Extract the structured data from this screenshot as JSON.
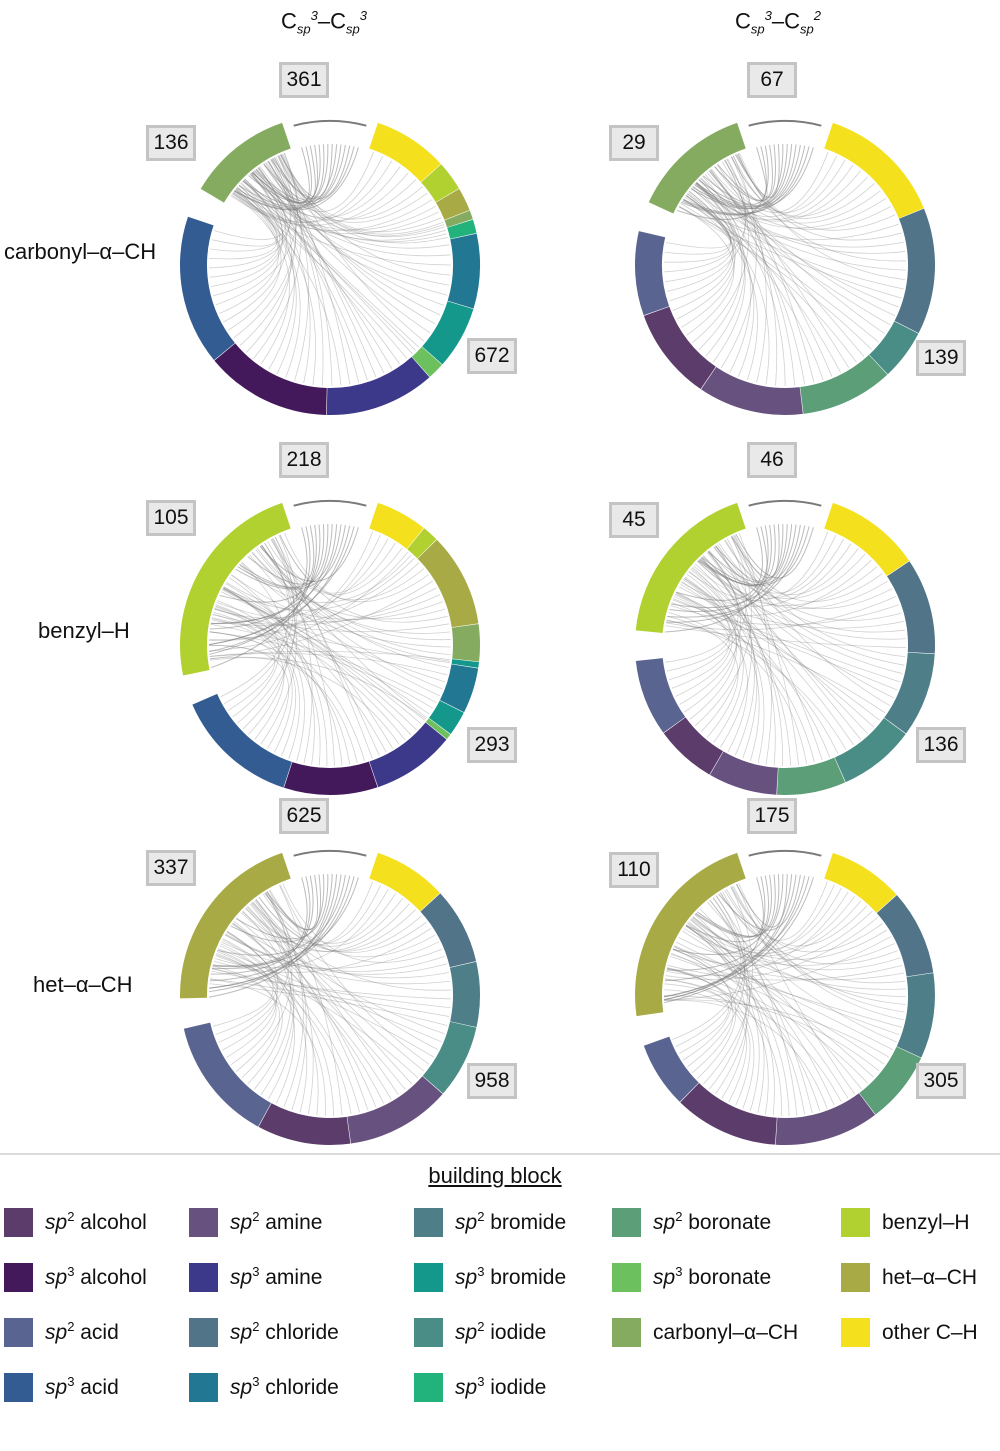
{
  "column_titles": [
    {
      "base1": "C",
      "sub1": "sp",
      "sup1": "3",
      "dash": "–",
      "base2": "C",
      "sub2": "sp",
      "sup2": "3"
    },
    {
      "base1": "C",
      "sub1": "sp",
      "sup1": "3",
      "dash": "–",
      "base2": "C",
      "sub2": "sp",
      "sup2": "2"
    }
  ],
  "row_labels": [
    "carbonyl–α–CH",
    "benzyl–H",
    "het–α–CH"
  ],
  "panels": [
    {
      "row": "carbonyl–α–CH",
      "column": "Csp3–Csp3",
      "counts": {
        "self": "361",
        "source": "136",
        "partner": "672"
      },
      "segments": [
        {
          "block": "carbonyl–α–CH",
          "size": 136
        },
        {
          "block": "other C–H",
          "size": 95
        },
        {
          "block": "benzyl–H",
          "size": 38
        },
        {
          "block": "het–α–CH",
          "size": 30
        },
        {
          "block": "carbonyl–α–CH",
          "size": 12
        },
        {
          "block": "sp3 iodide",
          "size": 18
        },
        {
          "block": "sp3 chloride",
          "size": 95
        },
        {
          "block": "sp3 bromide",
          "size": 80
        },
        {
          "block": "sp3 boronate",
          "size": 22
        },
        {
          "block": "sp3 amine",
          "size": 140
        },
        {
          "block": "sp3 alcohol",
          "size": 160
        },
        {
          "block": "sp3 acid",
          "size": 190
        }
      ]
    },
    {
      "row": "carbonyl–α–CH",
      "column": "Csp3–Csp2",
      "counts": {
        "self": "67",
        "source": "29",
        "partner": "139"
      },
      "segments": [
        {
          "block": "carbonyl–α–CH",
          "size": 29
        },
        {
          "block": "other C–H",
          "size": 30
        },
        {
          "block": "sp2 chloride",
          "size": 30
        },
        {
          "block": "sp2 iodide",
          "size": 12
        },
        {
          "block": "sp2 boronate",
          "size": 22
        },
        {
          "block": "sp2 amine",
          "size": 25
        },
        {
          "block": "sp2 alcohol",
          "size": 22
        },
        {
          "block": "sp2 acid",
          "size": 20
        }
      ]
    },
    {
      "row": "benzyl–H",
      "column": "Csp3–Csp3",
      "counts": {
        "self": "218",
        "source": "105",
        "partner": "293"
      },
      "segments": [
        {
          "block": "benzyl–H",
          "size": 105
        },
        {
          "block": "other C–H",
          "size": 25
        },
        {
          "block": "benzyl–H",
          "size": 8
        },
        {
          "block": "het–α–CH",
          "size": 45
        },
        {
          "block": "carbonyl–α–CH",
          "size": 18
        },
        {
          "block": "sp3 bromide",
          "size": 3
        },
        {
          "block": "sp3 chloride",
          "size": 22
        },
        {
          "block": "sp3 bromide",
          "size": 12
        },
        {
          "block": "sp3 boronate",
          "size": 3
        },
        {
          "block": "sp3 amine",
          "size": 40
        },
        {
          "block": "sp3 alcohol",
          "size": 45
        },
        {
          "block": "sp3 acid",
          "size": 60
        }
      ]
    },
    {
      "row": "benzyl–H",
      "column": "Csp3–Csp2",
      "counts": {
        "self": "46",
        "source": "45",
        "partner": "136"
      },
      "segments": [
        {
          "block": "benzyl–H",
          "size": 45
        },
        {
          "block": "other C–H",
          "size": 25
        },
        {
          "block": "sp2 chloride",
          "size": 25
        },
        {
          "block": "sp2 bromide",
          "size": 22
        },
        {
          "block": "sp2 iodide",
          "size": 20
        },
        {
          "block": "sp2 boronate",
          "size": 18
        },
        {
          "block": "sp2 amine",
          "size": 18
        },
        {
          "block": "sp2 alcohol",
          "size": 16
        },
        {
          "block": "sp2 acid",
          "size": 20
        }
      ]
    },
    {
      "row": "het–α–CH",
      "column": "Csp3–Csp3",
      "counts": {
        "self": "625",
        "source": "337",
        "partner": "958"
      },
      "segments": [
        {
          "block": "het–α–CH",
          "size": 337
        },
        {
          "block": "other C–H",
          "size": 130
        },
        {
          "block": "sp2 chloride",
          "size": 135
        },
        {
          "block": "sp2 bromide",
          "size": 115
        },
        {
          "block": "sp2 iodide",
          "size": 130
        },
        {
          "block": "sp2 amine",
          "size": 185
        },
        {
          "block": "sp2 alcohol",
          "size": 165
        },
        {
          "block": "sp2 acid",
          "size": 220
        }
      ]
    },
    {
      "row": "het–α–CH",
      "column": "Csp3–Csp2",
      "counts": {
        "self": "175",
        "source": "110",
        "partner": "305"
      },
      "segments": [
        {
          "block": "het–α–CH",
          "size": 110
        },
        {
          "block": "other C–H",
          "size": 40
        },
        {
          "block": "sp2 chloride",
          "size": 45
        },
        {
          "block": "sp2 bromide",
          "size": 45
        },
        {
          "block": "sp2 boronate",
          "size": 38
        },
        {
          "block": "sp2 amine",
          "size": 55
        },
        {
          "block": "sp2 alcohol",
          "size": 55
        },
        {
          "block": "sp2 acid",
          "size": 35
        }
      ]
    }
  ],
  "legend": {
    "title": "building block",
    "items": [
      {
        "key": "sp2 alcohol",
        "prefix": "sp",
        "sup": "2",
        "text": " alcohol",
        "color": "#5c3c6b"
      },
      {
        "key": "sp3 alcohol",
        "prefix": "sp",
        "sup": "3",
        "text": " alcohol",
        "color": "#44195c"
      },
      {
        "key": "sp2 acid",
        "prefix": "sp",
        "sup": "2",
        "text": " acid",
        "color": "#5a6490"
      },
      {
        "key": "sp3 acid",
        "prefix": "sp",
        "sup": "3",
        "text": " acid",
        "color": "#335c92"
      },
      {
        "key": "sp2 amine",
        "prefix": "sp",
        "sup": "2",
        "text": " amine",
        "color": "#67517f"
      },
      {
        "key": "sp3 amine",
        "prefix": "sp",
        "sup": "3",
        "text": " amine",
        "color": "#3d398a"
      },
      {
        "key": "sp2 chloride",
        "prefix": "sp",
        "sup": "2",
        "text": " chloride",
        "color": "#527488"
      },
      {
        "key": "sp3 chloride",
        "prefix": "sp",
        "sup": "3",
        "text": " chloride",
        "color": "#227892"
      },
      {
        "key": "sp2 bromide",
        "prefix": "sp",
        "sup": "2",
        "text": " bromide",
        "color": "#4e7f88"
      },
      {
        "key": "sp3 bromide",
        "prefix": "sp",
        "sup": "3",
        "text": " bromide",
        "color": "#14988c"
      },
      {
        "key": "sp2 iodide",
        "prefix": "sp",
        "sup": "2",
        "text": " iodide",
        "color": "#4a8d86"
      },
      {
        "key": "sp3 iodide",
        "prefix": "sp",
        "sup": "3",
        "text": " iodide",
        "color": "#22b27c"
      },
      {
        "key": "sp2 boronate",
        "prefix": "sp",
        "sup": "2",
        "text": " boronate",
        "color": "#5b9e77"
      },
      {
        "key": "sp3 boronate",
        "prefix": "sp",
        "sup": "3",
        "text": " boronate",
        "color": "#6cc05e"
      },
      {
        "key": "carbonyl–α–CH",
        "prefix": "",
        "sup": "",
        "text": "carbonyl–α–CH",
        "color": "#85ab60"
      },
      {
        "key": "benzyl–H",
        "prefix": "",
        "sup": "",
        "text": "benzyl–H",
        "color": "#b1d131"
      },
      {
        "key": "het–α–CH",
        "prefix": "",
        "sup": "",
        "text": "het–α–CH",
        "color": "#a8ab45"
      },
      {
        "key": "other C–H",
        "prefix": "",
        "sup": "",
        "text": "other C–H",
        "color": "#f5e01e"
      }
    ]
  },
  "link_color": "#7a7a7a"
}
